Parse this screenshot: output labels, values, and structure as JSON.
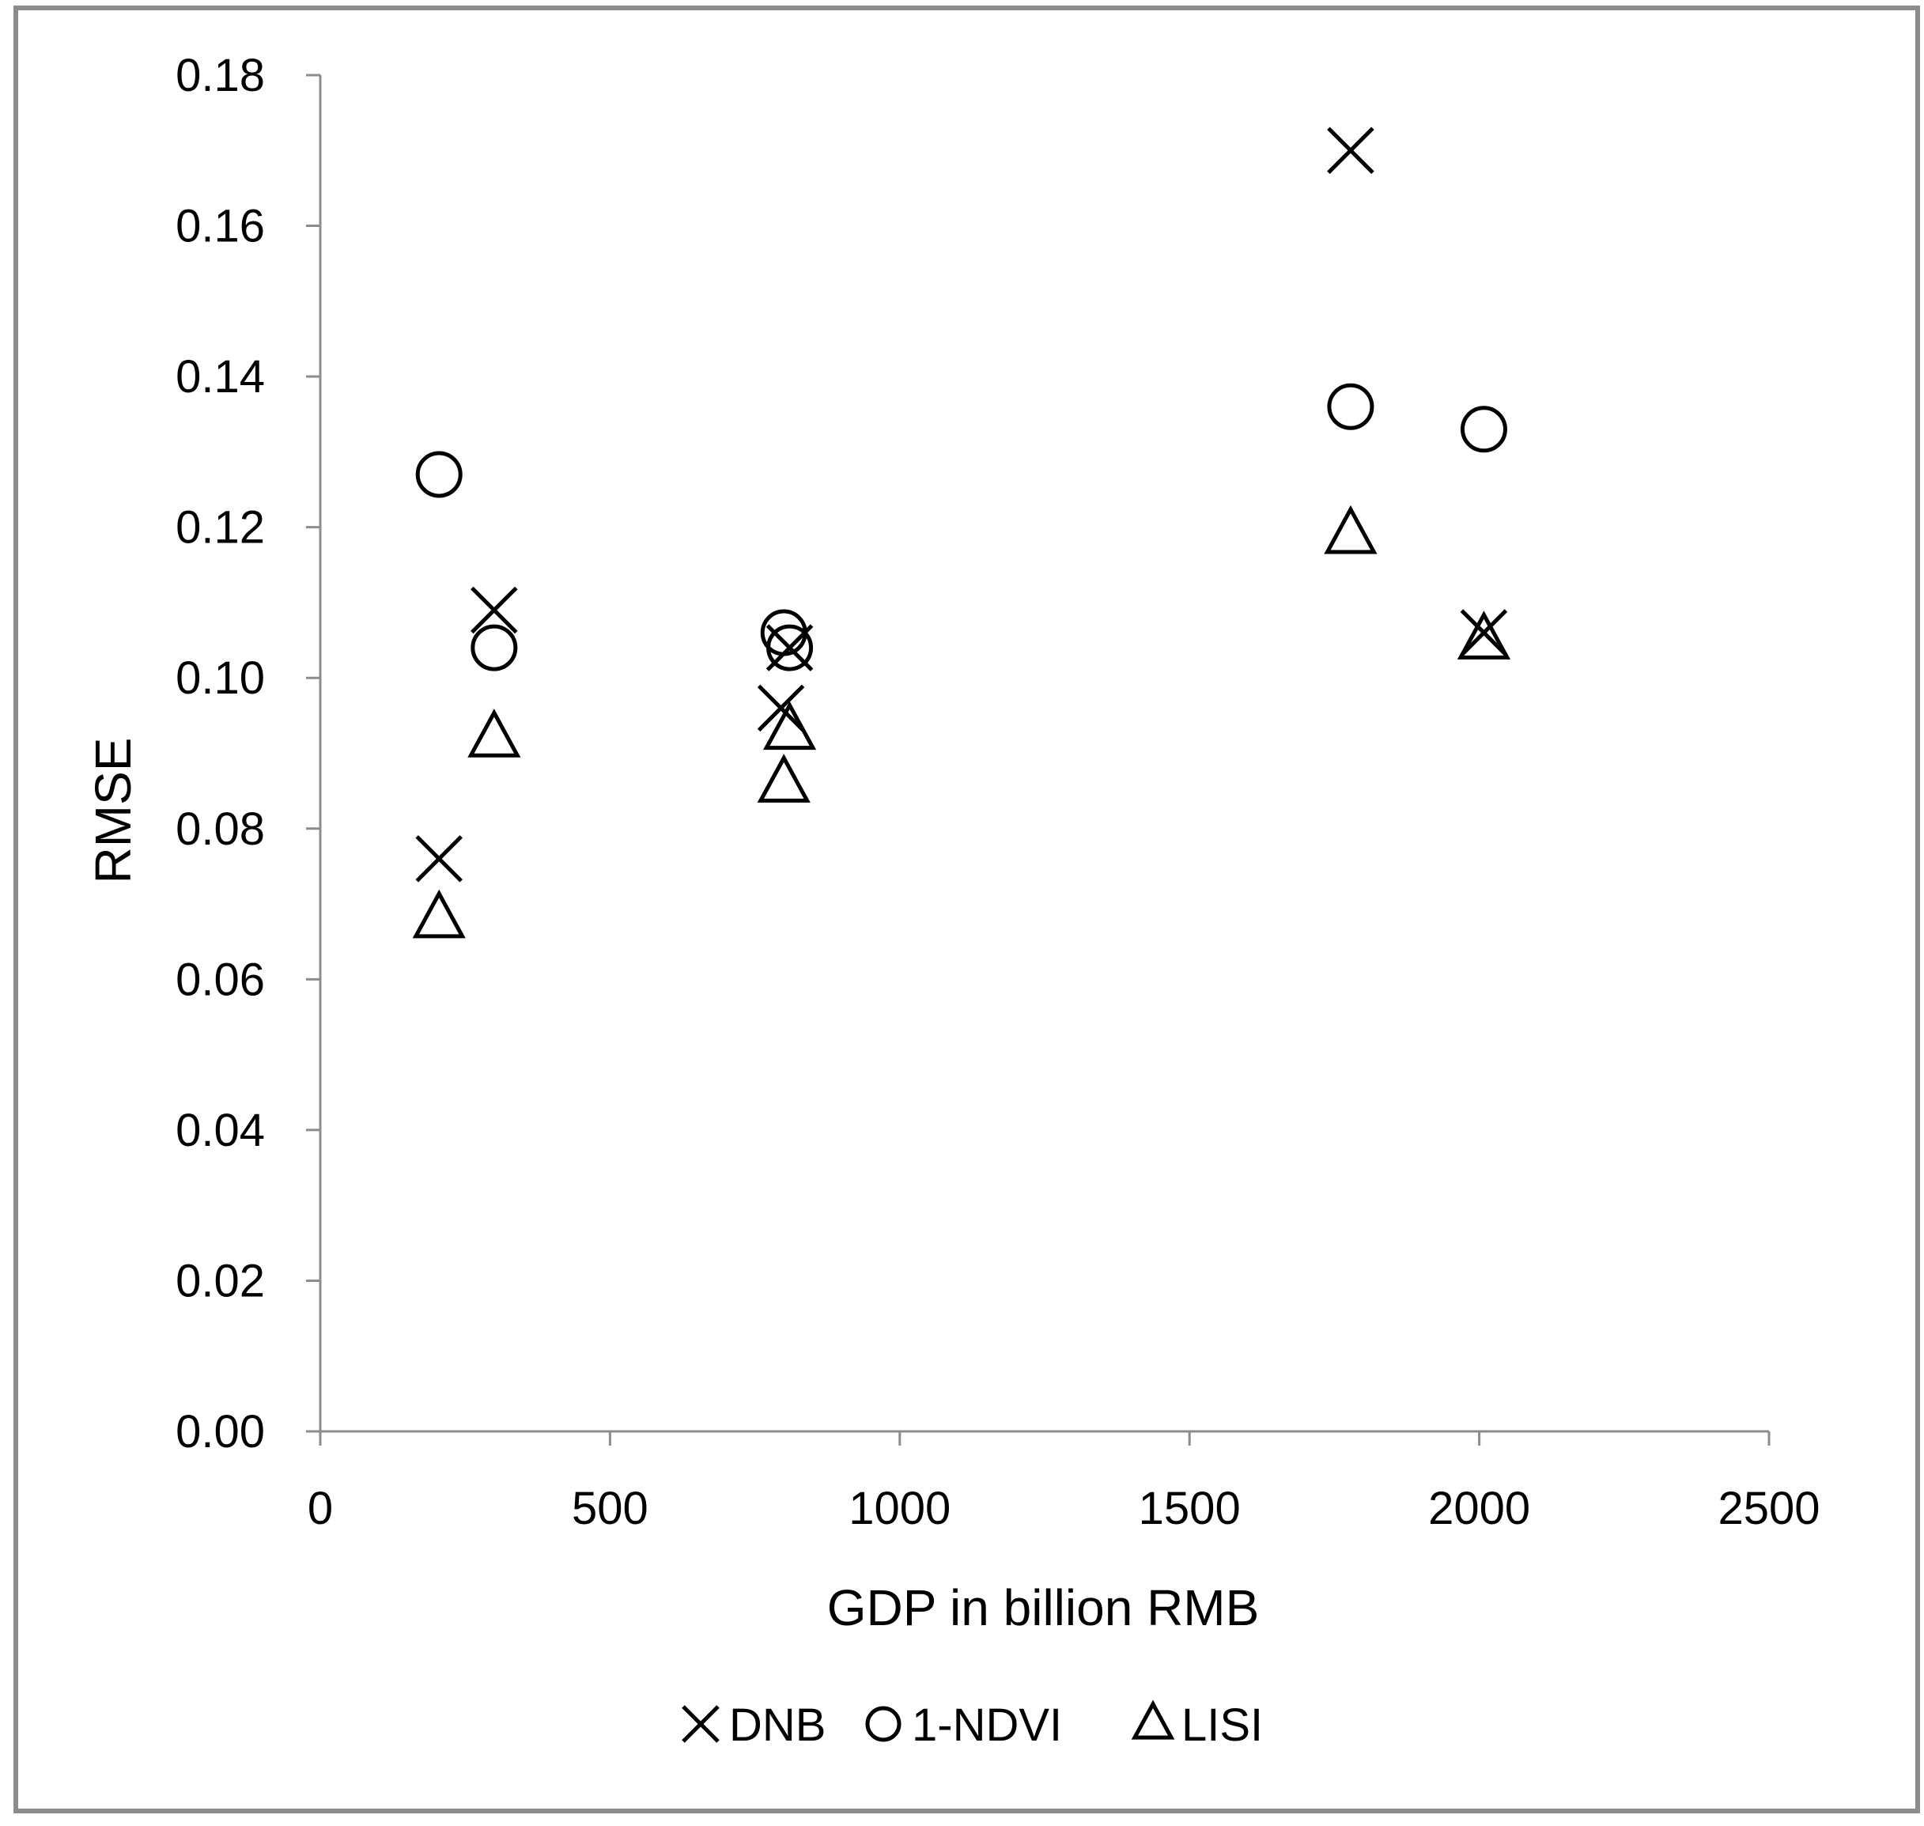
{
  "chart_data": {
    "type": "scatter",
    "title": "",
    "xlabel": "GDP in billion RMB",
    "ylabel": "RMSE",
    "xlim": [
      0,
      2500
    ],
    "ylim": [
      0,
      0.18
    ],
    "xticks": [
      "0",
      "500",
      "1000",
      "1500",
      "2000",
      "2500"
    ],
    "xtick_values": [
      0,
      500,
      1000,
      1500,
      2000,
      2500
    ],
    "yticks": [
      "0.00",
      "0.02",
      "0.04",
      "0.06",
      "0.08",
      "0.10",
      "0.12",
      "0.14",
      "0.16",
      "0.18"
    ],
    "ytick_values": [
      0,
      0.02,
      0.04,
      0.06,
      0.08,
      0.1,
      0.12,
      0.14,
      0.16,
      0.18
    ],
    "grid": false,
    "legend_position": "bottom-center",
    "series": [
      {
        "name": "DNB",
        "marker": "x-icon",
        "points": [
          {
            "x": 205,
            "y": 0.076
          },
          {
            "x": 300,
            "y": 0.109
          },
          {
            "x": 795,
            "y": 0.096
          },
          {
            "x": 810,
            "y": 0.104
          },
          {
            "x": 1778,
            "y": 0.17
          },
          {
            "x": 2008,
            "y": 0.106
          }
        ]
      },
      {
        "name": "1-NDVI",
        "marker": "circle-icon",
        "points": [
          {
            "x": 205,
            "y": 0.127
          },
          {
            "x": 300,
            "y": 0.104
          },
          {
            "x": 800,
            "y": 0.106
          },
          {
            "x": 810,
            "y": 0.104
          },
          {
            "x": 1778,
            "y": 0.136
          },
          {
            "x": 2008,
            "y": 0.133
          }
        ]
      },
      {
        "name": "LISI",
        "marker": "triangle-icon",
        "points": [
          {
            "x": 205,
            "y": 0.068
          },
          {
            "x": 300,
            "y": 0.092
          },
          {
            "x": 800,
            "y": 0.086
          },
          {
            "x": 810,
            "y": 0.093
          },
          {
            "x": 1778,
            "y": 0.119
          },
          {
            "x": 2008,
            "y": 0.105
          }
        ]
      }
    ],
    "colors": {
      "marker": "#000000",
      "axis": "#8c8c8c",
      "frame": "#8c8c8c"
    }
  }
}
